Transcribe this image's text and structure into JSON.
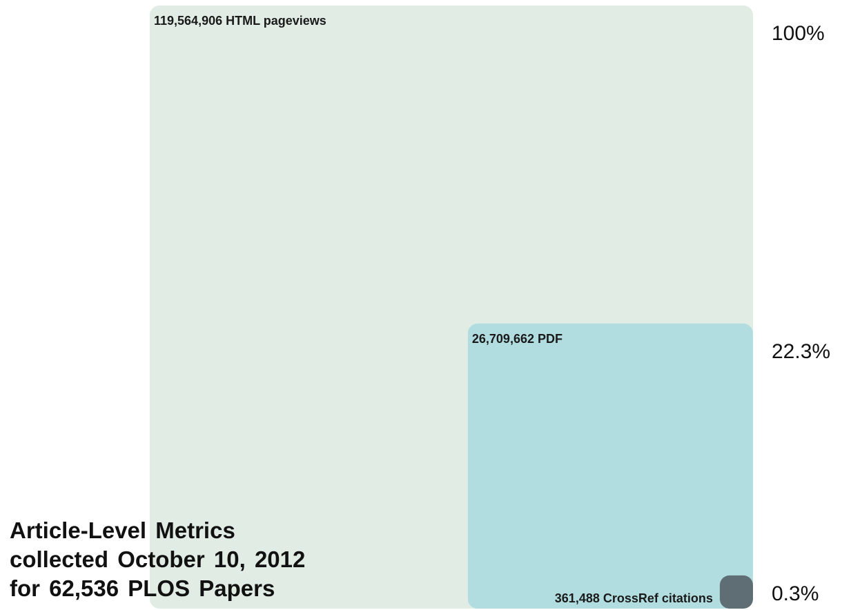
{
  "chart_data": {
    "type": "nested-area",
    "title": "",
    "series": [
      {
        "label": "119,564,906 HTML pageviews",
        "value": 119564906,
        "percent_label": "100%",
        "color": "#e0ece4"
      },
      {
        "label": "26,709,662 PDF",
        "value": 26709662,
        "percent_label": "22.3%",
        "color": "#b2dde0"
      },
      {
        "label": "361,488 CrossRef citations",
        "value": 361488,
        "percent_label": "0.3%",
        "color": "#5e6e74"
      }
    ]
  },
  "caption": {
    "lines": [
      "Article-Level Metrics",
      "collected October 10, 2012",
      "for 62,536 PLOS Papers"
    ]
  }
}
